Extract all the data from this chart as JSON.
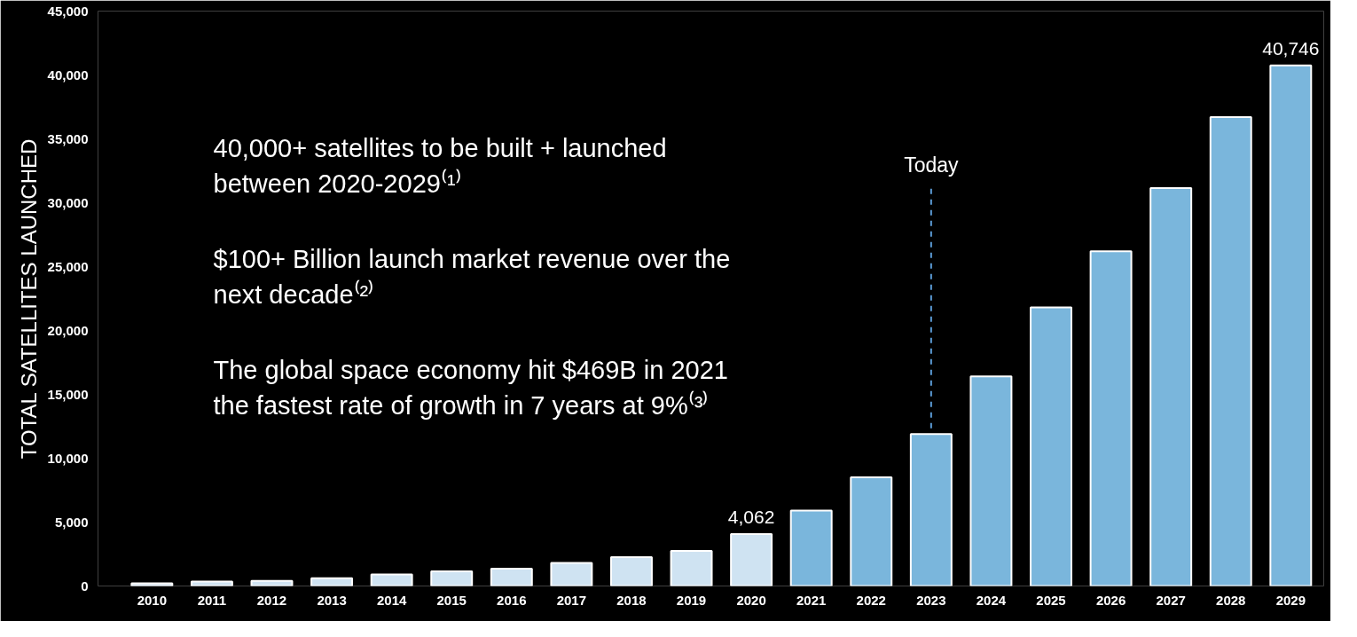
{
  "chart_data": {
    "type": "bar",
    "ylabel": "TOTAL SATELLITES LAUNCHED",
    "categories": [
      "2010",
      "2011",
      "2012",
      "2013",
      "2014",
      "2015",
      "2016",
      "2017",
      "2018",
      "2019",
      "2020",
      "2021",
      "2022",
      "2023",
      "2024",
      "2025",
      "2026",
      "2027",
      "2028",
      "2029"
    ],
    "values": [
      200,
      350,
      400,
      600,
      900,
      1150,
      1350,
      1800,
      2250,
      2750,
      4062,
      5900,
      8500,
      11900,
      16400,
      21800,
      26200,
      31150,
      36700,
      40746
    ],
    "colors": [
      "#cfe3f2",
      "#cfe3f2",
      "#cfe3f2",
      "#cfe3f2",
      "#cfe3f2",
      "#cfe3f2",
      "#cfe3f2",
      "#cfe3f2",
      "#cfe3f2",
      "#cfe3f2",
      "#cfe3f2",
      "#7ab6dc",
      "#7ab6dc",
      "#7ab6dc",
      "#7ab6dc",
      "#7ab6dc",
      "#7ab6dc",
      "#7ab6dc",
      "#7ab6dc",
      "#7ab6dc"
    ],
    "value_labels": [
      null,
      null,
      null,
      null,
      null,
      null,
      null,
      null,
      null,
      null,
      "4,062",
      null,
      null,
      null,
      null,
      null,
      null,
      null,
      null,
      "40,746"
    ],
    "ylim": [
      0,
      45000
    ],
    "yticks": [
      0,
      {
        "value": 5000,
        "label": "5,000"
      },
      {
        "value": 10000,
        "label": "10,000"
      },
      {
        "value": 15000,
        "label": "15,000"
      },
      {
        "value": 20000,
        "label": "20,000"
      },
      {
        "value": 25000,
        "label": "25,000"
      },
      {
        "value": 30000,
        "label": "30,000"
      },
      {
        "value": 35000,
        "label": "35,000"
      },
      {
        "value": 40000,
        "label": "40,000"
      },
      {
        "value": 45000,
        "label": "45,000"
      }
    ],
    "grid": false,
    "ref_lines": [
      {
        "axis": "x",
        "value": "2023",
        "label": "Today",
        "color": "#5b9bd5",
        "line_style": "dashed"
      }
    ],
    "annotations": [
      "40,000+ satellites to be built + launched\nbetween 2020-2029⁽¹⁾",
      "$100+ Billion launch market revenue over the\nnext decade⁽²⁾",
      "The global space economy hit $469B in 2021\nthe fastest rate of growth in 7 years at 9%⁽³⁾"
    ]
  }
}
